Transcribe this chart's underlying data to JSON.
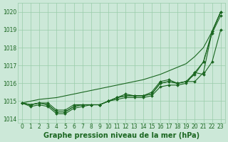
{
  "x": [
    0,
    1,
    2,
    3,
    4,
    5,
    6,
    7,
    8,
    9,
    10,
    11,
    12,
    13,
    14,
    15,
    16,
    17,
    18,
    19,
    20,
    21,
    22,
    23
  ],
  "series": [
    [
      1014.9,
      1014.8,
      1014.9,
      1014.9,
      1014.5,
      1014.5,
      1014.8,
      1014.8,
      1014.8,
      1014.8,
      1015.0,
      1015.1,
      1015.2,
      1015.2,
      1015.2,
      1015.3,
      1015.8,
      1015.9,
      1015.9,
      1016.0,
      1016.6,
      1017.2,
      1018.8,
      1019.8
    ],
    [
      1014.9,
      1014.8,
      1014.9,
      1014.8,
      1014.4,
      1014.4,
      1014.7,
      1014.8,
      1014.8,
      1014.8,
      1015.0,
      1015.2,
      1015.3,
      1015.3,
      1015.3,
      1015.4,
      1016.0,
      1016.1,
      1016.0,
      1016.1,
      1016.5,
      1017.2,
      1018.9,
      1020.0
    ],
    [
      1014.9,
      1014.7,
      1014.8,
      1014.7,
      1014.3,
      1014.3,
      1014.6,
      1014.7,
      1014.8,
      1014.8,
      1015.0,
      1015.2,
      1015.3,
      1015.3,
      1015.3,
      1015.4,
      1016.0,
      1016.1,
      1016.0,
      1016.1,
      1016.6,
      1016.5,
      1017.2,
      1019.0
    ],
    [
      1014.9,
      1014.8,
      1014.9,
      1014.8,
      1014.4,
      1014.4,
      1014.7,
      1014.8,
      1014.8,
      1014.8,
      1015.0,
      1015.2,
      1015.4,
      1015.3,
      1015.3,
      1015.5,
      1016.1,
      1016.2,
      1016.0,
      1016.1,
      1016.1,
      1016.6,
      1018.9,
      1020.0
    ],
    [
      1014.9,
      1015.0,
      1015.1,
      1015.15,
      1015.2,
      1015.3,
      1015.4,
      1015.5,
      1015.6,
      1015.7,
      1015.8,
      1015.9,
      1016.0,
      1016.1,
      1016.2,
      1016.35,
      1016.5,
      1016.7,
      1016.9,
      1017.1,
      1017.5,
      1018.0,
      1018.9,
      1020.0
    ]
  ],
  "bg_color": "#cce8d8",
  "grid_color": "#99ccaa",
  "line_color": "#1a6620",
  "marker_color": "#1a6620",
  "ylabel_values": [
    1014,
    1015,
    1016,
    1017,
    1018,
    1019,
    1020
  ],
  "ylim": [
    1013.8,
    1020.5
  ],
  "xlim": [
    -0.5,
    23.5
  ],
  "xlabel": "Graphe pression niveau de la mer (hPa)",
  "xlabel_fontsize": 7,
  "tick_fontsize": 5.5
}
